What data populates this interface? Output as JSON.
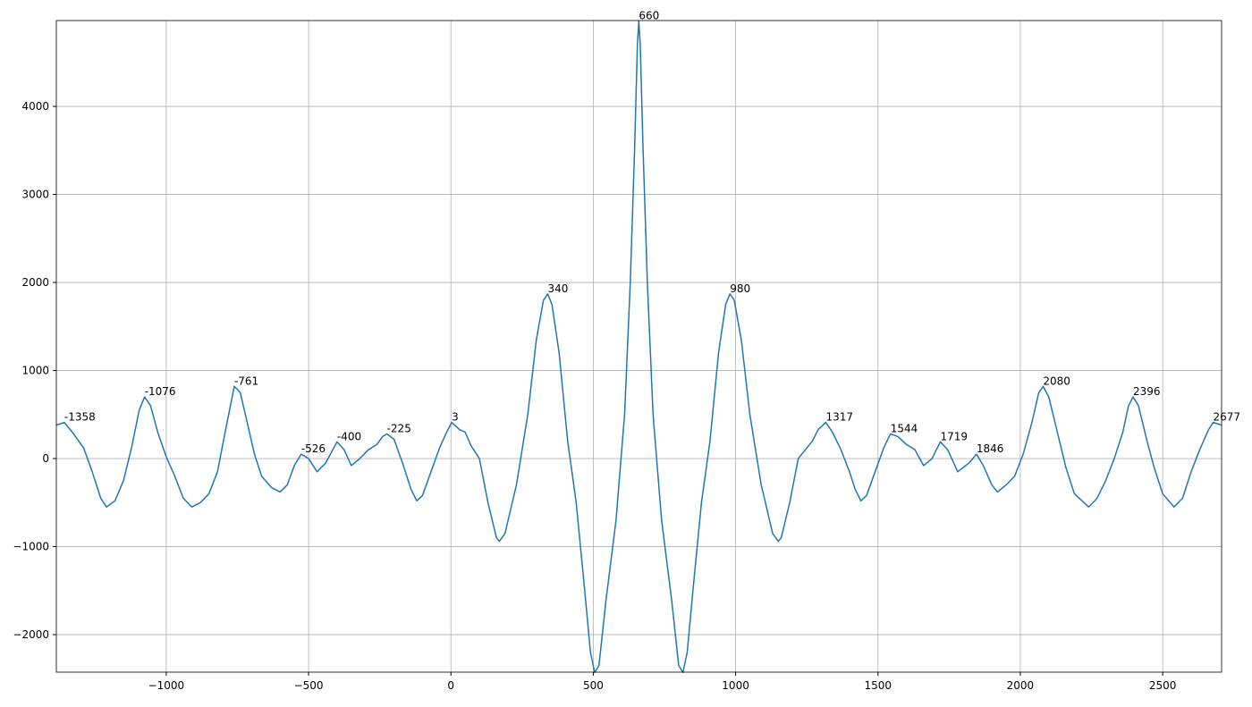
{
  "chart_data": {
    "type": "line",
    "color": "#1f77b4",
    "grid": true,
    "xlim": [
      -1386,
      2707
    ],
    "ylim": [
      -2426,
      4975
    ],
    "xticks": [
      {
        "value": -1000,
        "label": "−1000"
      },
      {
        "value": -500,
        "label": "−500"
      },
      0,
      500,
      1000,
      1500,
      2000,
      2500
    ],
    "yticks": [
      {
        "value": -2000,
        "label": "−2000"
      },
      {
        "value": -1000,
        "label": "−1000"
      },
      0,
      1000,
      2000,
      3000,
      4000
    ],
    "x": [
      -1386,
      -1358,
      -1330,
      -1290,
      -1260,
      -1230,
      -1210,
      -1180,
      -1150,
      -1120,
      -1095,
      -1076,
      -1055,
      -1030,
      -1000,
      -970,
      -940,
      -910,
      -880,
      -850,
      -820,
      -790,
      -761,
      -740,
      -715,
      -690,
      -665,
      -630,
      -600,
      -575,
      -550,
      -526,
      -500,
      -470,
      -440,
      -400,
      -375,
      -350,
      -320,
      -290,
      -260,
      -240,
      -225,
      -200,
      -170,
      -140,
      -120,
      -100,
      -70,
      -40,
      -15,
      3,
      30,
      50,
      70,
      100,
      130,
      160,
      170,
      190,
      230,
      270,
      300,
      325,
      340,
      355,
      380,
      410,
      440,
      470,
      490,
      505,
      520,
      545,
      580,
      610,
      630,
      645,
      655,
      660,
      665,
      675,
      690,
      710,
      740,
      775,
      800,
      815,
      830,
      850,
      880,
      910,
      940,
      965,
      980,
      995,
      1020,
      1050,
      1090,
      1130,
      1150,
      1160,
      1190,
      1220,
      1240,
      1270,
      1290,
      1317,
      1340,
      1370,
      1400,
      1420,
      1440,
      1460,
      1490,
      1520,
      1544,
      1570,
      1600,
      1630,
      1660,
      1690,
      1719,
      1745,
      1780,
      1820,
      1846,
      1870,
      1900,
      1920,
      1950,
      1980,
      2010,
      2040,
      2065,
      2080,
      2100,
      2130,
      2160,
      2190,
      2240,
      2270,
      2300,
      2330,
      2360,
      2380,
      2396,
      2415,
      2445,
      2470,
      2500,
      2540,
      2570,
      2600,
      2630,
      2660,
      2677,
      2707
    ],
    "values": [
      380,
      410,
      300,
      120,
      -150,
      -450,
      -550,
      -480,
      -250,
      150,
      550,
      700,
      600,
      300,
      20,
      -200,
      -450,
      -550,
      -500,
      -400,
      -150,
      350,
      820,
      750,
      400,
      50,
      -200,
      -330,
      -380,
      -300,
      -80,
      50,
      0,
      -150,
      -50,
      190,
      100,
      -80,
      0,
      100,
      160,
      250,
      280,
      220,
      -50,
      -350,
      -480,
      -420,
      -150,
      120,
      300,
      410,
      330,
      300,
      150,
      0,
      -500,
      -900,
      -940,
      -850,
      -300,
      500,
      1350,
      1800,
      1870,
      1750,
      1200,
      200,
      -500,
      -1500,
      -2200,
      -2430,
      -2350,
      -1600,
      -700,
      500,
      2000,
      3500,
      4700,
      4970,
      4700,
      3500,
      2000,
      500,
      -700,
      -1600,
      -2350,
      -2430,
      -2200,
      -1500,
      -500,
      200,
      1200,
      1750,
      1870,
      1800,
      1350,
      500,
      -300,
      -850,
      -940,
      -900,
      -500,
      0,
      80,
      200,
      330,
      410,
      300,
      100,
      -150,
      -350,
      -480,
      -420,
      -150,
      120,
      280,
      250,
      160,
      100,
      -80,
      0,
      190,
      100,
      -150,
      -50,
      50,
      -80,
      -300,
      -380,
      -300,
      -200,
      50,
      400,
      750,
      820,
      700,
      300,
      -100,
      -400,
      -550,
      -450,
      -250,
      0,
      300,
      600,
      700,
      600,
      200,
      -100,
      -400,
      -550,
      -450,
      -150,
      100,
      320,
      410,
      380
    ],
    "annotations": [
      {
        "x": -1358,
        "y": 410
      },
      {
        "x": -1076,
        "y": 700
      },
      {
        "x": -761,
        "y": 820
      },
      {
        "x": -526,
        "y": 50
      },
      {
        "x": -400,
        "y": 190
      },
      {
        "x": -225,
        "y": 280
      },
      {
        "x": 3,
        "y": 410
      },
      {
        "x": 340,
        "y": 1870
      },
      {
        "x": 660,
        "y": 4970
      },
      {
        "x": 980,
        "y": 1870
      },
      {
        "x": 1317,
        "y": 410
      },
      {
        "x": 1544,
        "y": 280
      },
      {
        "x": 1719,
        "y": 190
      },
      {
        "x": 1846,
        "y": 50
      },
      {
        "x": 2080,
        "y": 820
      },
      {
        "x": 2396,
        "y": 700
      },
      {
        "x": 2677,
        "y": 410
      }
    ]
  }
}
